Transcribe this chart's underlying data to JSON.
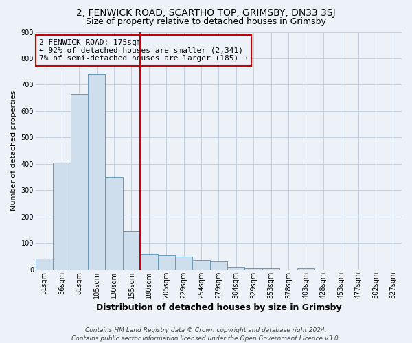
{
  "title": "2, FENWICK ROAD, SCARTHO TOP, GRIMSBY, DN33 3SJ",
  "subtitle": "Size of property relative to detached houses in Grimsby",
  "xlabel": "Distribution of detached houses by size in Grimsby",
  "ylabel": "Number of detached properties",
  "footer_line1": "Contains HM Land Registry data © Crown copyright and database right 2024.",
  "footer_line2": "Contains public sector information licensed under the Open Government Licence v3.0.",
  "annotation_title": "2 FENWICK ROAD: 175sqm",
  "annotation_line1": "← 92% of detached houses are smaller (2,341)",
  "annotation_line2": "7% of semi-detached houses are larger (185) →",
  "bar_color": "#cfdeed",
  "bar_edge_color": "#6699bb",
  "redline_color": "#cc0000",
  "grid_color": "#c5d0df",
  "bg_color": "#edf1f8",
  "categories": [
    "31sqm",
    "56sqm",
    "81sqm",
    "105sqm",
    "130sqm",
    "155sqm",
    "180sqm",
    "205sqm",
    "229sqm",
    "254sqm",
    "279sqm",
    "304sqm",
    "329sqm",
    "353sqm",
    "378sqm",
    "403sqm",
    "428sqm",
    "453sqm",
    "477sqm",
    "502sqm",
    "527sqm"
  ],
  "values": [
    40,
    405,
    665,
    740,
    350,
    145,
    60,
    55,
    50,
    35,
    30,
    10,
    5,
    5,
    0,
    5,
    0,
    0,
    0,
    0,
    0
  ],
  "redline_bin": 6,
  "ylim": [
    0,
    900
  ],
  "yticks": [
    0,
    100,
    200,
    300,
    400,
    500,
    600,
    700,
    800,
    900
  ],
  "title_fontsize": 10,
  "subtitle_fontsize": 9,
  "xlabel_fontsize": 9,
  "ylabel_fontsize": 8,
  "tick_fontsize": 7,
  "footer_fontsize": 6.5,
  "annotation_fontsize": 8
}
